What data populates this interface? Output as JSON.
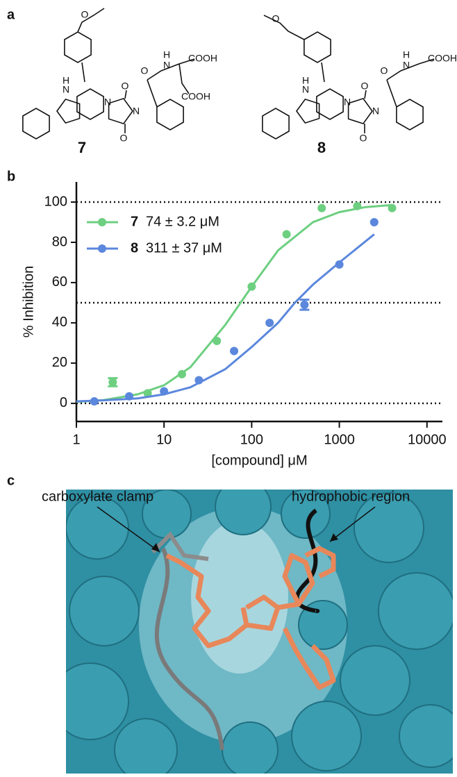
{
  "panel_labels": [
    "a",
    "b",
    "c"
  ],
  "structures": [
    {
      "label": "7",
      "atoms": [
        "O",
        "N",
        "H",
        "N",
        "N",
        "O",
        "O",
        "O",
        "N",
        "H",
        "COOH",
        "COOH"
      ]
    },
    {
      "label": "8",
      "atoms": [
        "O",
        "N",
        "H",
        "N",
        "N",
        "O",
        "O",
        "O",
        "N",
        "H",
        "COOH"
      ]
    }
  ],
  "chart_data": {
    "type": "scatter",
    "x_label": "[compound] μM",
    "y_label": "% Inhibition",
    "xscale": "log",
    "xlim": [
      1,
      15000
    ],
    "xticks": [
      1,
      10,
      100,
      1000,
      10000
    ],
    "ylim": [
      -9,
      110
    ],
    "yticks": [
      0,
      20,
      40,
      60,
      80,
      100
    ],
    "reference_lines": [
      0,
      50,
      100
    ],
    "series": [
      {
        "name": "7",
        "legend_text": "74 ± 3.2 μM",
        "color": "#6dcf80",
        "x": [
          2.6,
          6.5,
          16,
          40,
          100,
          250,
          630,
          1600,
          4000
        ],
        "values": [
          10.5,
          5,
          14.5,
          31,
          58,
          84,
          97,
          98,
          97
        ],
        "errors": [
          2,
          null,
          null,
          null,
          null,
          null,
          null,
          null,
          null
        ],
        "fit": {
          "x": [
            1,
            2,
            5,
            10,
            20,
            50,
            100,
            200,
            500,
            1000,
            2000,
            4000
          ],
          "values": [
            0.8,
            1.6,
            4.5,
            9,
            18,
            39,
            58,
            76,
            90,
            95,
            97.5,
            98.5
          ]
        }
      },
      {
        "name": "8",
        "legend_text": "311 ± 37 μM",
        "color": "#5b87dc",
        "x": [
          1.6,
          4,
          10,
          25,
          63,
          160,
          400,
          1000,
          2500
        ],
        "values": [
          1,
          3.5,
          6,
          11.5,
          26,
          40,
          49,
          69,
          90
        ],
        "errors": [
          null,
          null,
          null,
          null,
          null,
          null,
          2.5,
          null,
          null
        ],
        "fit": {
          "x": [
            1,
            2,
            5,
            10,
            20,
            50,
            100,
            200,
            311,
            500,
            1000,
            2500
          ],
          "values": [
            1,
            1.5,
            2.5,
            4.5,
            8,
            17,
            28,
            40,
            50,
            59,
            70,
            84
          ]
        }
      }
    ]
  },
  "annotations": [
    "carboxylate clamp",
    "hydrophobic region"
  ]
}
